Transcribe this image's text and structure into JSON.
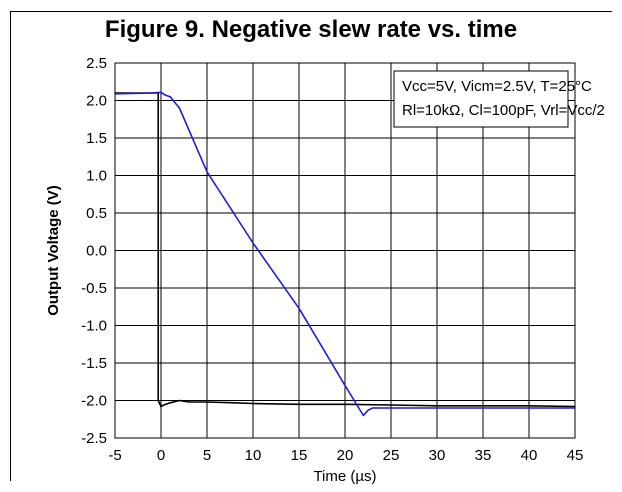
{
  "chart_data": {
    "type": "line",
    "title": "Figure 9. Negative slew rate vs. time",
    "xlabel": "Time (µs)",
    "ylabel": "Output Voltage (V)",
    "xlim": [
      -5,
      45
    ],
    "ylim": [
      -2.5,
      2.5
    ],
    "x_ticks": [
      -5,
      0,
      5,
      10,
      15,
      20,
      25,
      30,
      35,
      40,
      45
    ],
    "y_ticks": [
      2.5,
      2.0,
      1.5,
      1.0,
      0.5,
      0.0,
      -0.5,
      -1.0,
      -1.5,
      -2.0,
      -2.5
    ],
    "x_tick_labels": [
      "-5",
      "0",
      "5",
      "10",
      "15",
      "20",
      "25",
      "30",
      "35",
      "40",
      "45"
    ],
    "y_tick_labels": [
      "2.5",
      "2.0",
      "1.5",
      "1.0",
      "0.5",
      "0.0",
      "-0.5",
      "-1.0",
      "-1.5",
      "-2.0",
      "-2.5"
    ],
    "grid": true,
    "legend_placement": "top-right",
    "annotation": [
      "Vcc=5V, Vicm=2.5V, T=25°C",
      "Rl=10kΩ, Cl=100pF, Vrl=Vcc/2"
    ],
    "series": [
      {
        "color": "#000000",
        "x": [
          -5,
          -1,
          -0.3,
          -0.3,
          0,
          0.3,
          1,
          2,
          3,
          5,
          8,
          10,
          15,
          20,
          25,
          30,
          35,
          40,
          45
        ],
        "y": [
          2.1,
          2.1,
          2.1,
          -2.0,
          -2.08,
          -2.06,
          -2.03,
          -2.0,
          -2.02,
          -2.02,
          -2.03,
          -2.04,
          -2.05,
          -2.05,
          -2.06,
          -2.07,
          -2.07,
          -2.07,
          -2.08
        ]
      },
      {
        "color": "#1f1fd0",
        "x": [
          -5,
          -1,
          0,
          0.5,
          1,
          2,
          5,
          10,
          15,
          20,
          21.5,
          22,
          22.5,
          23,
          25,
          30,
          35,
          40,
          45
        ],
        "y": [
          2.09,
          2.1,
          2.11,
          2.07,
          2.05,
          1.9,
          1.05,
          0.1,
          -0.77,
          -1.8,
          -2.1,
          -2.2,
          -2.13,
          -2.1,
          -2.1,
          -2.1,
          -2.1,
          -2.1,
          -2.1
        ]
      }
    ]
  }
}
